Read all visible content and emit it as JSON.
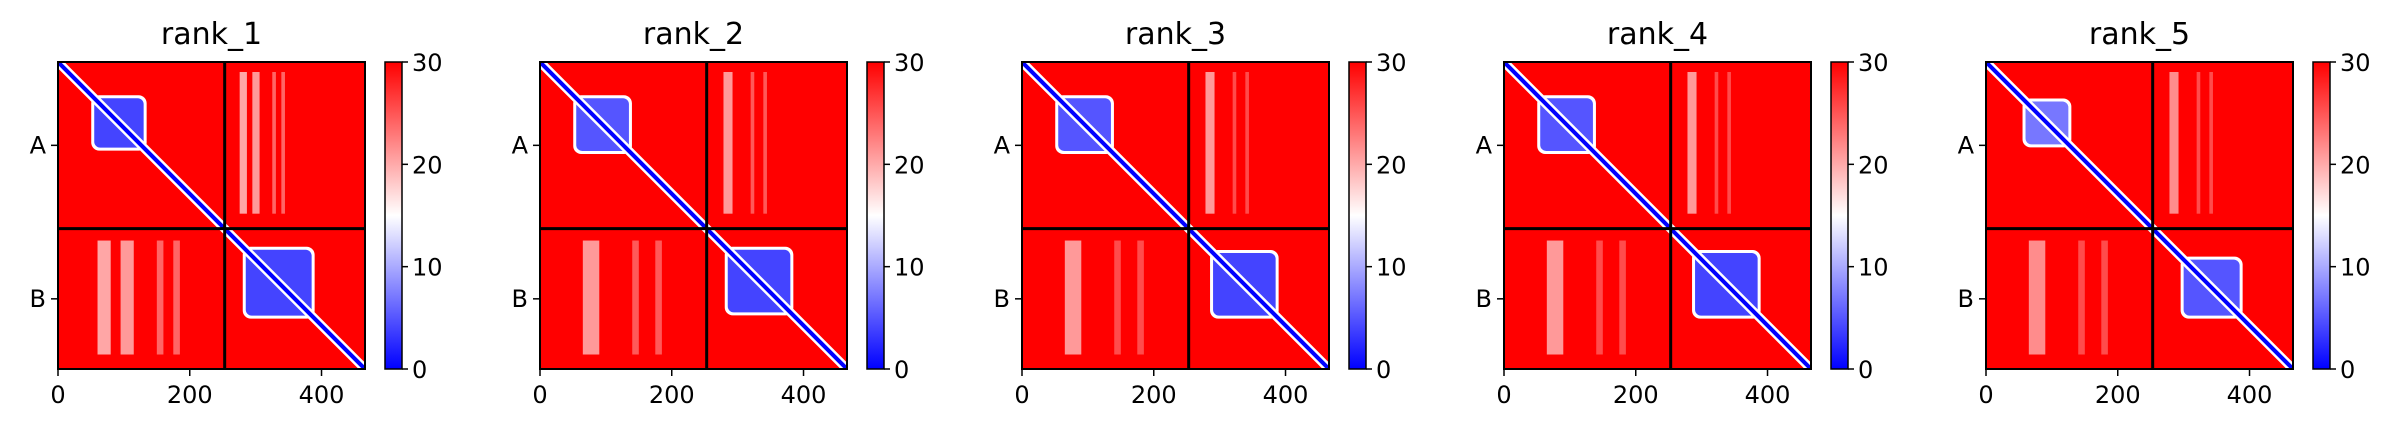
{
  "chart_data": {
    "type": "heatmap",
    "description_free": true,
    "colormap": {
      "name": "bwr",
      "low": "#0000ff",
      "mid": "#ffffff",
      "high": "#ff0000",
      "vmin": 0,
      "vmax": 30,
      "ticks": [
        "0",
        "10",
        "20",
        "30"
      ]
    },
    "axis": {
      "x_range": [
        0,
        466
      ],
      "x_ticks": [
        0,
        200,
        400
      ],
      "x_tick_labels": [
        "0",
        "200",
        "400"
      ],
      "y_tick_labels": [
        "A",
        "B"
      ],
      "chain_boundary": 253,
      "chain_lengths": [
        253,
        213
      ]
    },
    "panels": [
      {
        "title": "rank_1",
        "blocks": [
          {
            "chain": "A",
            "start": 55,
            "end": 130,
            "value": 4
          },
          {
            "chain": "B",
            "start": 285,
            "end": 385,
            "value": 4
          }
        ],
        "interface_bands": [
          {
            "start": 60,
            "end": 80,
            "value": 17
          },
          {
            "start": 95,
            "end": 115,
            "value": 18
          },
          {
            "start": 150,
            "end": 160,
            "value": 22
          },
          {
            "start": 175,
            "end": 185,
            "value": 22
          }
        ]
      },
      {
        "title": "rank_2",
        "blocks": [
          {
            "chain": "A",
            "start": 55,
            "end": 135,
            "value": 5
          },
          {
            "chain": "B",
            "start": 285,
            "end": 380,
            "value": 4
          }
        ],
        "interface_bands": [
          {
            "start": 65,
            "end": 90,
            "value": 18
          },
          {
            "start": 140,
            "end": 150,
            "value": 23
          },
          {
            "start": 175,
            "end": 185,
            "value": 23
          }
        ]
      },
      {
        "title": "rank_3",
        "blocks": [
          {
            "chain": "A",
            "start": 55,
            "end": 135,
            "value": 5
          },
          {
            "chain": "B",
            "start": 290,
            "end": 385,
            "value": 4
          }
        ],
        "interface_bands": [
          {
            "start": 65,
            "end": 90,
            "value": 18
          },
          {
            "start": 140,
            "end": 150,
            "value": 24
          },
          {
            "start": 175,
            "end": 185,
            "value": 24
          }
        ]
      },
      {
        "title": "rank_4",
        "blocks": [
          {
            "chain": "A",
            "start": 55,
            "end": 135,
            "value": 5
          },
          {
            "chain": "B",
            "start": 290,
            "end": 385,
            "value": 4
          }
        ],
        "interface_bands": [
          {
            "start": 65,
            "end": 90,
            "value": 18
          },
          {
            "start": 140,
            "end": 150,
            "value": 24
          },
          {
            "start": 175,
            "end": 185,
            "value": 24
          }
        ]
      },
      {
        "title": "rank_5",
        "blocks": [
          {
            "chain": "A",
            "start": 60,
            "end": 125,
            "value": 7
          },
          {
            "chain": "B",
            "start": 300,
            "end": 385,
            "value": 5
          }
        ],
        "interface_bands": [
          {
            "start": 65,
            "end": 90,
            "value": 19
          },
          {
            "start": 140,
            "end": 150,
            "value": 24
          },
          {
            "start": 175,
            "end": 185,
            "value": 24
          }
        ]
      }
    ]
  }
}
